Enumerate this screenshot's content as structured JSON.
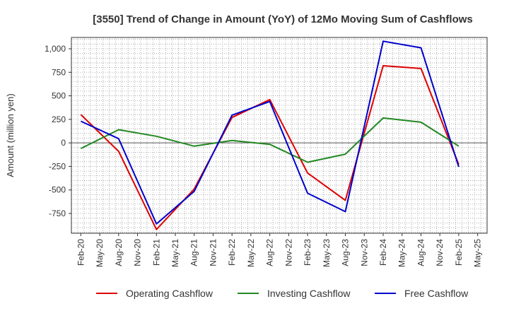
{
  "chart_data": {
    "type": "line",
    "title": "[3550]  Trend of Change in Amount (YoY) of 12Mo Moving Sum of Cashflows",
    "xlabel": "",
    "ylabel": "Amount (million yen)",
    "categories": [
      "Feb-20",
      "May-20",
      "Aug-20",
      "Nov-20",
      "Feb-21",
      "May-21",
      "Aug-21",
      "Nov-21",
      "Feb-22",
      "May-22",
      "Aug-22",
      "Nov-22",
      "Feb-23",
      "May-23",
      "Aug-23",
      "Nov-23",
      "Feb-24",
      "May-24",
      "Aug-24",
      "Nov-24",
      "Feb-25",
      "May-25"
    ],
    "ylim": [
      -960,
      1120
    ],
    "yticks": [
      -750,
      -500,
      -250,
      0,
      250,
      500,
      750,
      1000
    ],
    "ytick_labels": [
      "-750",
      "-500",
      "-250",
      "0",
      "250",
      "500",
      "750",
      "1,000"
    ],
    "grid": true,
    "legend_position": "bottom",
    "series": [
      {
        "name": "Operating Cashflow",
        "color": "#dd0000",
        "values": [
          300,
          null,
          -90,
          null,
          -920,
          null,
          -490,
          null,
          270,
          null,
          460,
          null,
          -320,
          null,
          -610,
          null,
          820,
          null,
          790,
          null,
          -230,
          null
        ]
      },
      {
        "name": "Investing Cashflow",
        "color": "#228822",
        "values": [
          -60,
          null,
          140,
          null,
          70,
          null,
          -35,
          null,
          25,
          null,
          -15,
          null,
          -205,
          null,
          -120,
          null,
          265,
          null,
          220,
          null,
          -35,
          null
        ]
      },
      {
        "name": "Free Cashflow",
        "color": "#0000cc",
        "values": [
          230,
          null,
          45,
          null,
          -860,
          null,
          -515,
          null,
          295,
          null,
          440,
          null,
          -535,
          null,
          -730,
          null,
          1080,
          null,
          1010,
          null,
          -255,
          null
        ]
      }
    ]
  }
}
